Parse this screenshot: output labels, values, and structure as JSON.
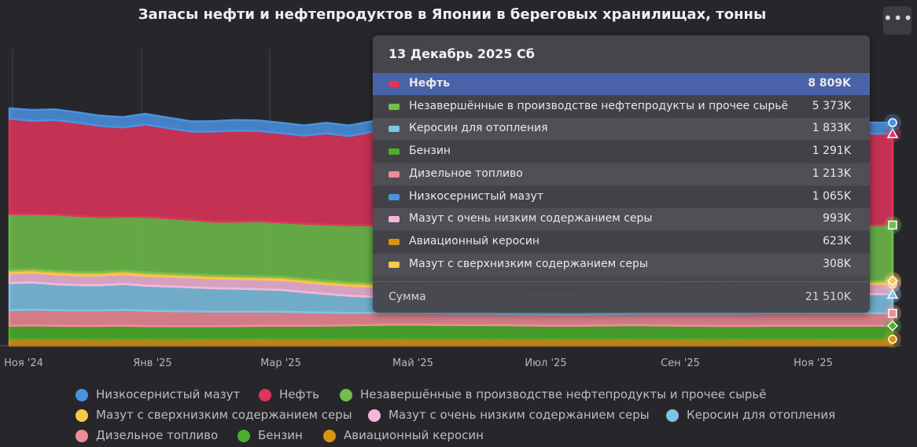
{
  "title": "Запасы нефти и нефтепродуктов в Японии в береговых хранилищах, тонны",
  "menu_icon": "ellipsis-icon",
  "chart_data": {
    "type": "area",
    "stacked": true,
    "x_ticks": [
      "Ноя '24",
      "Янв '25",
      "Мар '25",
      "Май '25",
      "Июл '25",
      "Сен '25",
      "Ноя '25"
    ],
    "x_start": "2024-11-01",
    "x_end": "2025-12-13",
    "grid": "vertical",
    "legend_position": "bottom",
    "series": [
      {
        "name": "Авиационный керосин",
        "color": "#d99212",
        "values": [
          620,
          640,
          630,
          620,
          600,
          620,
          610,
          600,
          610,
          620,
          630,
          640,
          630,
          620,
          610,
          620,
          630,
          640,
          630,
          620,
          630,
          640,
          630,
          620,
          610,
          620,
          630,
          640,
          630,
          620,
          610,
          600,
          610,
          620,
          630,
          620,
          610,
          620,
          630,
          623
        ]
      },
      {
        "name": "Бензин",
        "color": "#4caf2a",
        "values": [
          1300,
          1310,
          1290,
          1280,
          1300,
          1310,
          1280,
          1270,
          1260,
          1250,
          1260,
          1270,
          1280,
          1300,
          1320,
          1340,
          1360,
          1380,
          1390,
          1370,
          1350,
          1340,
          1330,
          1320,
          1310,
          1300,
          1310,
          1320,
          1330,
          1320,
          1310,
          1300,
          1290,
          1280,
          1290,
          1300,
          1310,
          1300,
          1295,
          1291
        ]
      },
      {
        "name": "Дизельное топливо",
        "color": "#f08c98",
        "values": [
          1500,
          1520,
          1510,
          1480,
          1500,
          1520,
          1480,
          1460,
          1440,
          1420,
          1400,
          1380,
          1360,
          1300,
          1250,
          1200,
          1180,
          1150,
          1130,
          1120,
          1110,
          1100,
          1090,
          1080,
          1070,
          1060,
          1080,
          1100,
          1120,
          1140,
          1160,
          1180,
          1200,
          1210,
          1220,
          1215,
          1210,
          1205,
          1212,
          1213
        ]
      },
      {
        "name": "Керосин для отопления",
        "color": "#7ec4e4",
        "values": [
          2600,
          2620,
          2500,
          2450,
          2420,
          2500,
          2420,
          2380,
          2320,
          2250,
          2200,
          2150,
          2100,
          1950,
          1800,
          1650,
          1550,
          1450,
          1350,
          1250,
          1150,
          1050,
          980,
          940,
          920,
          950,
          1000,
          1100,
          1200,
          1300,
          1400,
          1500,
          1600,
          1680,
          1740,
          1790,
          1810,
          1820,
          1828,
          1833
        ]
      },
      {
        "name": "Мазут с очень низким содержанием серы",
        "color": "#f6b7db",
        "values": [
          950,
          960,
          955,
          950,
          960,
          965,
          960,
          955,
          950,
          945,
          950,
          955,
          960,
          965,
          970,
          975,
          980,
          985,
          990,
          985,
          980,
          975,
          970,
          975,
          980,
          985,
          990,
          995,
          1000,
          995,
          990,
          985,
          990,
          995,
          1000,
          995,
          990,
          992,
          993,
          993
        ]
      },
      {
        "name": "Мазут с сверхнизким содержанием серы",
        "color": "#f7c948",
        "values": [
          320,
          330,
          325,
          320,
          315,
          320,
          325,
          320,
          315,
          310,
          305,
          310,
          315,
          320,
          325,
          320,
          315,
          310,
          305,
          300,
          305,
          310,
          315,
          320,
          315,
          310,
          305,
          300,
          305,
          310,
          315,
          310,
          305,
          300,
          305,
          310,
          308,
          306,
          308,
          308
        ]
      },
      {
        "name": "Незавершённые в производстве нефтепродукты и прочее сырьё",
        "color": "#6fbf4a",
        "values": [
          5400,
          5300,
          5450,
          5400,
          5300,
          5200,
          5350,
          5300,
          5250,
          5150,
          5200,
          5300,
          5250,
          5300,
          5400,
          5500,
          5600,
          5700,
          5650,
          5600,
          5550,
          5500,
          5450,
          5400,
          5350,
          5400,
          5450,
          5500,
          5450,
          5400,
          5350,
          5300,
          5350,
          5380,
          5400,
          5390,
          5380,
          5375,
          5370,
          5373
        ]
      },
      {
        "name": "Нефть",
        "color": "#e0345a",
        "values": [
          9200,
          9000,
          9100,
          9000,
          8800,
          8600,
          8900,
          8700,
          8500,
          8700,
          8800,
          8700,
          8600,
          8500,
          8800,
          8600,
          9000,
          8700,
          8900,
          8600,
          8800,
          9100,
          8900,
          8700,
          8800,
          9000,
          8900,
          8800,
          8900,
          9000,
          8850,
          8700,
          8800,
          8900,
          8850,
          8800,
          8780,
          8800,
          8810,
          8809
        ]
      },
      {
        "name": "Низкосернистый мазут",
        "color": "#4a92e0",
        "values": [
          1000,
          1050,
          1020,
          1000,
          980,
          1000,
          1030,
          1010,
          990,
          1000,
          1020,
          1010,
          1000,
          990,
          1010,
          1030,
          1020,
          1000,
          990,
          1010,
          1030,
          1040,
          1050,
          1060,
          1050,
          1040,
          1060,
          1070,
          1060,
          1050,
          1060,
          1070,
          1060,
          1065,
          1070,
          1060,
          1062,
          1065,
          1066,
          1065
        ]
      }
    ]
  },
  "tooltip": {
    "date": "13 Декабрь 2025 Сб",
    "rows": [
      {
        "name": "Нефть",
        "value": "8 809K",
        "color": "#e0345a",
        "highlight": true
      },
      {
        "name": "Незавершённые в производстве нефтепродукты и прочее сырьё",
        "value": "5 373K",
        "color": "#6fbf4a"
      },
      {
        "name": "Керосин для отопления",
        "value": "1 833K",
        "color": "#7ec4e4"
      },
      {
        "name": "Бензин",
        "value": "1 291K",
        "color": "#4caf2a"
      },
      {
        "name": "Дизельное топливо",
        "value": "1 213K",
        "color": "#f08c98"
      },
      {
        "name": "Низкосернистый мазут",
        "value": "1 065K",
        "color": "#4a92e0"
      },
      {
        "name": "Мазут с очень низким содержанием серы",
        "value": "993K",
        "color": "#f6b7db"
      },
      {
        "name": "Авиационный керосин",
        "value": "623K",
        "color": "#d99212"
      },
      {
        "name": "Мазут с сверхнизким содержанием серы",
        "value": "308K",
        "color": "#f7c948"
      }
    ],
    "sum_label": "Сумма",
    "sum_value": "21 510K"
  },
  "legend": [
    {
      "name": "Низкосернистый мазут",
      "color": "#4a92e0"
    },
    {
      "name": "Нефть",
      "color": "#e0345a"
    },
    {
      "name": "Незавершённые в производстве нефтепродукты и прочее сырьё",
      "color": "#6fbf4a"
    },
    {
      "name": "Мазут с сверхнизким содержанием серы",
      "color": "#f7c948"
    },
    {
      "name": "Мазут с очень низким содержанием серы",
      "color": "#f6b7db"
    },
    {
      "name": "Керосин для отопления",
      "color": "#7ec4e4"
    },
    {
      "name": "Дизельное топливо",
      "color": "#f08c98"
    },
    {
      "name": "Бензин",
      "color": "#4caf2a"
    },
    {
      "name": "Авиационный керосин",
      "color": "#d99212"
    }
  ]
}
